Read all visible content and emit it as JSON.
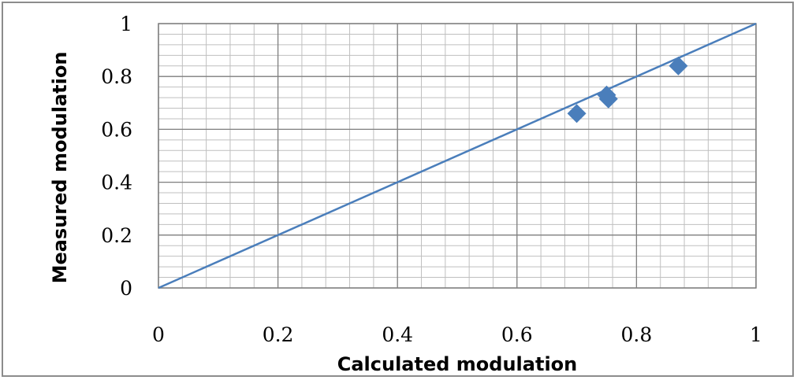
{
  "chart_data": {
    "type": "scatter",
    "title": "",
    "xlabel": "Calculated modulation",
    "ylabel": "Measured modulation",
    "xlim": [
      0,
      1
    ],
    "ylim": [
      0,
      1
    ],
    "x_ticks": [
      0,
      0.2,
      0.4,
      0.6,
      0.8,
      1
    ],
    "y_ticks": [
      0,
      0.2,
      0.4,
      0.6,
      0.8,
      1
    ],
    "x_tick_labels": [
      "0",
      "0.2",
      "0.4",
      "0.6",
      "0.8",
      "1"
    ],
    "y_tick_labels": [
      "0",
      "0.2",
      "0.4",
      "0.6",
      "0.8",
      "1"
    ],
    "grid": true,
    "minor_grid": true,
    "legend": false,
    "series": [
      {
        "marker": "diamond",
        "color": "#4a7ebb",
        "points": [
          {
            "x": 0.7,
            "y": 0.66
          },
          {
            "x": 0.75,
            "y": 0.73
          },
          {
            "x": 0.753,
            "y": 0.715
          },
          {
            "x": 0.87,
            "y": 0.84
          }
        ]
      }
    ],
    "reference_line": {
      "color": "#4a7ebb",
      "points": [
        {
          "x": 0,
          "y": 0
        },
        {
          "x": 1,
          "y": 1
        }
      ]
    }
  }
}
